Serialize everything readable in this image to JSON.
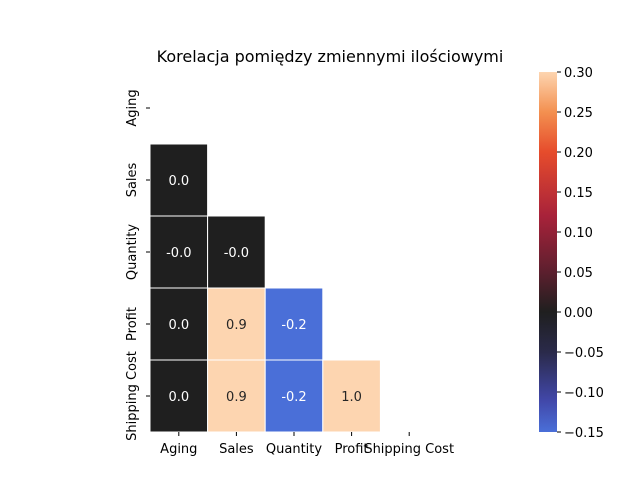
{
  "chart_data": {
    "type": "heatmap",
    "title": "Korelacja pomiędzy zmiennymi ilościowymi",
    "variables": [
      "Aging",
      "Sales",
      "Quantity",
      "Profit",
      "Shipping Cost"
    ],
    "mask": "upper-triangle-including-diagonal",
    "cells": [
      {
        "row": "Sales",
        "col": "Aging",
        "value": 0.0,
        "label": "0.0"
      },
      {
        "row": "Quantity",
        "col": "Aging",
        "value": -0.0,
        "label": "-0.0"
      },
      {
        "row": "Quantity",
        "col": "Sales",
        "value": -0.0,
        "label": "-0.0"
      },
      {
        "row": "Profit",
        "col": "Aging",
        "value": 0.0,
        "label": "0.0"
      },
      {
        "row": "Profit",
        "col": "Sales",
        "value": 0.9,
        "label": "0.9"
      },
      {
        "row": "Profit",
        "col": "Quantity",
        "value": -0.2,
        "label": "-0.2"
      },
      {
        "row": "Shipping Cost",
        "col": "Aging",
        "value": 0.0,
        "label": "0.0"
      },
      {
        "row": "Shipping Cost",
        "col": "Sales",
        "value": 0.9,
        "label": "0.9"
      },
      {
        "row": "Shipping Cost",
        "col": "Quantity",
        "value": -0.2,
        "label": "-0.2"
      },
      {
        "row": "Shipping Cost",
        "col": "Profit",
        "value": 1.0,
        "label": "1.0"
      }
    ],
    "colorbar": {
      "range": [
        -0.15,
        0.3
      ],
      "ticks": [
        "0.30",
        "0.25",
        "0.20",
        "0.15",
        "0.10",
        "0.05",
        "0.00",
        "−0.05",
        "−0.10",
        "−0.15"
      ],
      "tick_values": [
        0.3,
        0.25,
        0.2,
        0.15,
        0.1,
        0.05,
        0.0,
        -0.05,
        -0.1,
        -0.15
      ],
      "colormap": "icefire (centered at 0)"
    },
    "colors": {
      "low": "#4a6fd8",
      "center": "#1f1f1f",
      "high": "#fdd5b0"
    }
  }
}
